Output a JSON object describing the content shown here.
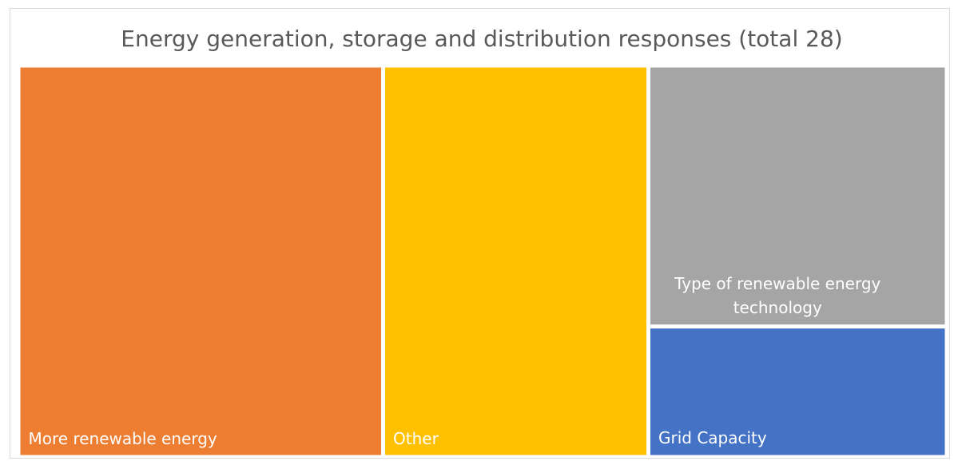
{
  "chart_data": {
    "type": "treemap",
    "title": "Energy generation, storage and distribution responses (total 28)",
    "categories": [
      "More renewable energy",
      "Other",
      "Type of renewable energy technology",
      "Grid Capacity"
    ],
    "values": [
      11,
      8,
      6,
      3
    ],
    "colors": [
      "#ed7d31",
      "#ffc000",
      "#a5a5a5",
      "#4472c4"
    ]
  }
}
